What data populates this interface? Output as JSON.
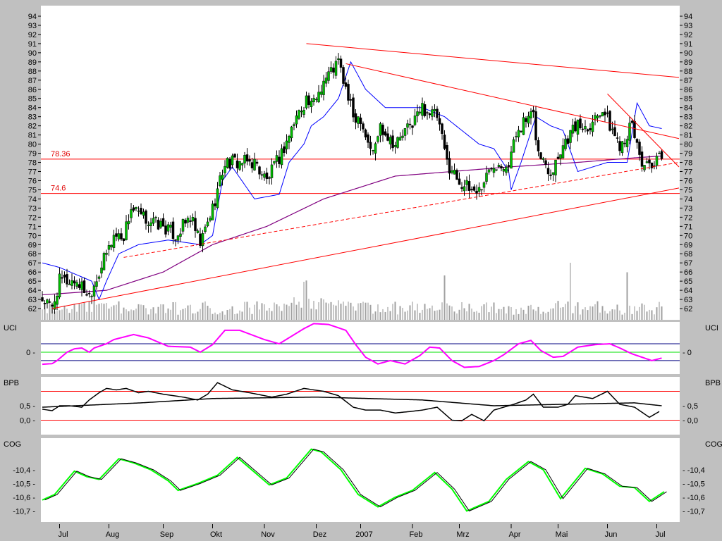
{
  "chart_data": [
    {
      "type": "candlestick",
      "panel": "price",
      "x_unit": "trading day index",
      "yticks": [
        62,
        63,
        64,
        65,
        66,
        67,
        68,
        69,
        70,
        71,
        72,
        73,
        74,
        75,
        76,
        77,
        78,
        79,
        80,
        81,
        82,
        83,
        84,
        85,
        86,
        87,
        88,
        89,
        90,
        91,
        92,
        93,
        94
      ],
      "ylim": [
        61.2,
        95
      ],
      "xlim": [
        0,
        260
      ],
      "x_ticks": [
        {
          "day": 7,
          "label": "Jul"
        },
        {
          "day": 27,
          "label": "Aug"
        },
        {
          "day": 49,
          "label": "Sep"
        },
        {
          "day": 69,
          "label": "Okt"
        },
        {
          "day": 90,
          "label": "Nov"
        },
        {
          "day": 111,
          "label": "Dez"
        },
        {
          "day": 129,
          "label": "2007"
        },
        {
          "day": 150,
          "label": "Feb"
        },
        {
          "day": 169,
          "label": "Mrz"
        },
        {
          "day": 190,
          "label": "Apr"
        },
        {
          "day": 209,
          "label": "Mai"
        },
        {
          "day": 229,
          "label": "Jun"
        },
        {
          "day": 249,
          "label": "Jul"
        }
      ],
      "close_keypoints": [
        [
          0,
          63
        ],
        [
          4,
          62
        ],
        [
          7,
          65
        ],
        [
          14,
          65
        ],
        [
          19,
          63.5
        ],
        [
          23,
          66
        ],
        [
          29,
          70
        ],
        [
          33,
          70
        ],
        [
          36,
          73
        ],
        [
          40,
          72
        ],
        [
          49,
          71
        ],
        [
          54,
          70
        ],
        [
          60,
          72
        ],
        [
          64,
          69
        ],
        [
          69,
          73
        ],
        [
          74,
          78
        ],
        [
          86,
          78
        ],
        [
          91,
          76
        ],
        [
          97,
          79
        ],
        [
          103,
          83
        ],
        [
          107,
          85
        ],
        [
          109,
          84
        ],
        [
          114,
          87
        ],
        [
          120,
          89
        ],
        [
          123,
          86
        ],
        [
          126,
          83
        ],
        [
          129,
          83
        ],
        [
          131,
          81
        ],
        [
          134,
          79
        ],
        [
          137,
          82
        ],
        [
          143,
          80
        ],
        [
          149,
          82
        ],
        [
          154,
          84
        ],
        [
          160,
          83
        ],
        [
          164,
          78
        ],
        [
          169,
          76
        ],
        [
          173,
          75
        ],
        [
          177,
          75
        ],
        [
          183,
          78
        ],
        [
          189,
          78
        ],
        [
          193,
          82
        ],
        [
          199,
          83
        ],
        [
          201,
          79
        ],
        [
          206,
          77
        ],
        [
          211,
          80
        ],
        [
          216,
          82
        ],
        [
          221,
          82
        ],
        [
          227,
          84
        ],
        [
          230,
          82
        ],
        [
          234,
          80
        ],
        [
          239,
          82
        ],
        [
          243,
          78
        ],
        [
          247,
          77
        ],
        [
          251,
          79
        ]
      ],
      "overlay_blue": [
        [
          0,
          67
        ],
        [
          7,
          66.5
        ],
        [
          20,
          65
        ],
        [
          23,
          63
        ],
        [
          26,
          65
        ],
        [
          31,
          68
        ],
        [
          39,
          69
        ],
        [
          51,
          69.5
        ],
        [
          64,
          69
        ],
        [
          69,
          70
        ],
        [
          73,
          76
        ],
        [
          77,
          77.5
        ],
        [
          86,
          74
        ],
        [
          96,
          74.5
        ],
        [
          100,
          78
        ],
        [
          106,
          80
        ],
        [
          109,
          82
        ],
        [
          114,
          83
        ],
        [
          120,
          85
        ],
        [
          125,
          89
        ],
        [
          131,
          86
        ],
        [
          139,
          84
        ],
        [
          154,
          84
        ],
        [
          163,
          83
        ],
        [
          177,
          80
        ],
        [
          183,
          79.5
        ],
        [
          189,
          77
        ],
        [
          190,
          75
        ],
        [
          194,
          78
        ],
        [
          200,
          83
        ],
        [
          206,
          82
        ],
        [
          211,
          81.5
        ],
        [
          217,
          77
        ],
        [
          229,
          78
        ],
        [
          237,
          78
        ],
        [
          241,
          84.5
        ],
        [
          246,
          82
        ],
        [
          251,
          81.7
        ]
      ],
      "overlay_purple_ma": [
        [
          0,
          63.5
        ],
        [
          26,
          64
        ],
        [
          49,
          66
        ],
        [
          69,
          69
        ],
        [
          91,
          71
        ],
        [
          114,
          74
        ],
        [
          143,
          76.5
        ],
        [
          166,
          77
        ],
        [
          189,
          77.5
        ],
        [
          217,
          78
        ],
        [
          240,
          78.5
        ],
        [
          251,
          78.7
        ]
      ],
      "volume_spikes": [
        [
          106,
          60
        ],
        [
          107,
          62
        ],
        [
          163,
          70
        ],
        [
          214,
          90
        ],
        [
          237,
          75
        ]
      ],
      "horizontal_lines": [
        {
          "value": 78.36,
          "label": "78.36"
        },
        {
          "value": 74.6,
          "label": "74.6"
        }
      ],
      "trendlines": [
        {
          "from": [
            107,
            91
          ],
          "to": [
            258,
            87.3
          ],
          "style": "solid"
        },
        {
          "from": [
            123,
            88.8
          ],
          "to": [
            258,
            80.6
          ],
          "style": "solid"
        },
        {
          "from": [
            229,
            85.5
          ],
          "to": [
            258,
            77.5
          ],
          "style": "solid"
        },
        {
          "from": [
            4,
            62
          ],
          "to": [
            258,
            75.2
          ],
          "style": "solid"
        },
        {
          "from": [
            33,
            67.6
          ],
          "to": [
            258,
            78
          ],
          "style": "dashed"
        }
      ],
      "colors": {
        "up": "#00c000",
        "down": "#000000",
        "blue": "#0000ff",
        "purple": "#800080",
        "red": "#ff0000",
        "volume": "#a0a0a0"
      }
    },
    {
      "type": "line",
      "panel": "UCI",
      "title": "UCI",
      "yticks": [
        {
          "value": 0,
          "label": "0"
        }
      ],
      "ylim": [
        -2.2,
        3.6
      ],
      "bands": [
        1,
        -1
      ],
      "series": [
        {
          "name": "UCI",
          "color": "#ff00ff",
          "points": [
            [
              0,
              -1.44
            ],
            [
              4,
              -1.36
            ],
            [
              6,
              -1
            ],
            [
              10,
              0
            ],
            [
              13,
              0.4
            ],
            [
              16,
              0.5
            ],
            [
              19,
              0
            ],
            [
              21,
              0.5
            ],
            [
              26,
              1.0
            ],
            [
              29,
              1.5
            ],
            [
              37,
              2.1
            ],
            [
              43,
              1.7
            ],
            [
              51,
              0.7
            ],
            [
              60,
              0.6
            ],
            [
              64,
              0
            ],
            [
              69,
              0.9
            ],
            [
              74,
              2.6
            ],
            [
              80,
              2.6
            ],
            [
              90,
              1.5
            ],
            [
              96,
              1.0
            ],
            [
              106,
              2.8
            ],
            [
              110,
              3.4
            ],
            [
              116,
              3.3
            ],
            [
              123,
              2.6
            ],
            [
              127,
              0.9
            ],
            [
              131,
              -0.6
            ],
            [
              136,
              -1.4
            ],
            [
              141,
              -1.0
            ],
            [
              147,
              -1.4
            ],
            [
              153,
              -0.4
            ],
            [
              157,
              0.6
            ],
            [
              161,
              0.5
            ],
            [
              166,
              -1.0
            ],
            [
              171,
              -1.8
            ],
            [
              177,
              -1.7
            ],
            [
              183,
              -1.0
            ],
            [
              187,
              -0.3
            ],
            [
              193,
              1.0
            ],
            [
              198,
              1.4
            ],
            [
              202,
              0.2
            ],
            [
              207,
              -0.6
            ],
            [
              211,
              -0.5
            ],
            [
              217,
              0.6
            ],
            [
              224,
              0.9
            ],
            [
              230,
              1.0
            ],
            [
              234,
              0.5
            ],
            [
              239,
              -0.2
            ],
            [
              243,
              -0.6
            ],
            [
              247,
              -1.0
            ],
            [
              251,
              -0.7
            ]
          ]
        }
      ]
    },
    {
      "type": "line",
      "panel": "BPB",
      "title": "BPB",
      "yticks": [
        {
          "value": 0.5,
          "label": "0,5"
        },
        {
          "value": 0,
          "label": "0,0"
        }
      ],
      "ylim": [
        -0.5,
        1.4
      ],
      "bands": [
        1.0,
        0.0
      ],
      "series": [
        {
          "name": "BPB",
          "color": "#000000",
          "points": [
            [
              0,
              0.38
            ],
            [
              4,
              0.33
            ],
            [
              7,
              0.5
            ],
            [
              11,
              0.5
            ],
            [
              16,
              0.45
            ],
            [
              19,
              0.7
            ],
            [
              23,
              0.95
            ],
            [
              26,
              1.1
            ],
            [
              30,
              1.05
            ],
            [
              34,
              1.1
            ],
            [
              39,
              0.95
            ],
            [
              43,
              1.0
            ],
            [
              49,
              0.9
            ],
            [
              57,
              0.8
            ],
            [
              63,
              0.7
            ],
            [
              67,
              0.9
            ],
            [
              71,
              1.3
            ],
            [
              77,
              1.05
            ],
            [
              84,
              0.95
            ],
            [
              93,
              0.8
            ],
            [
              99,
              0.9
            ],
            [
              106,
              1.1
            ],
            [
              114,
              1.0
            ],
            [
              120,
              0.85
            ],
            [
              126,
              0.45
            ],
            [
              131,
              0.35
            ],
            [
              137,
              0.35
            ],
            [
              143,
              0.25
            ],
            [
              149,
              0.3
            ],
            [
              154,
              0.35
            ],
            [
              160,
              0.45
            ],
            [
              166,
              0.0
            ],
            [
              170,
              -0.02
            ],
            [
              174,
              0.2
            ],
            [
              179,
              -0.02
            ],
            [
              183,
              0.35
            ],
            [
              187,
              0.45
            ],
            [
              191,
              0.55
            ],
            [
              196,
              0.7
            ],
            [
              199,
              0.9
            ],
            [
              203,
              0.45
            ],
            [
              209,
              0.45
            ],
            [
              213,
              0.55
            ],
            [
              216,
              0.85
            ],
            [
              223,
              0.75
            ],
            [
              229,
              1.0
            ],
            [
              234,
              0.55
            ],
            [
              240,
              0.45
            ],
            [
              246,
              0.1
            ],
            [
              250,
              0.3
            ]
          ]
        },
        {
          "name": "BPB average",
          "color": "#000000",
          "points": [
            [
              0,
              0.45
            ],
            [
              40,
              0.6
            ],
            [
              69,
              0.75
            ],
            [
              111,
              0.8
            ],
            [
              154,
              0.7
            ],
            [
              183,
              0.5
            ],
            [
              211,
              0.55
            ],
            [
              240,
              0.6
            ],
            [
              251,
              0.5
            ]
          ]
        }
      ]
    },
    {
      "type": "line",
      "panel": "COG",
      "title": "COG",
      "yticks": [
        {
          "value": -10.4,
          "label": "-10,4"
        },
        {
          "value": -10.5,
          "label": "-10,5"
        },
        {
          "value": -10.6,
          "label": "-10,6"
        },
        {
          "value": -10.7,
          "label": "-10,7"
        }
      ],
      "ylim": [
        -10.78,
        -10.2
      ],
      "series": [
        {
          "name": "COG",
          "color": "#00ff00",
          "points": [
            [
              0,
              -10.62
            ],
            [
              5,
              -10.58
            ],
            [
              13,
              -10.41
            ],
            [
              18,
              -10.45
            ],
            [
              23,
              -10.47
            ],
            [
              31,
              -10.32
            ],
            [
              37,
              -10.35
            ],
            [
              44,
              -10.4
            ],
            [
              51,
              -10.48
            ],
            [
              55,
              -10.55
            ],
            [
              63,
              -10.5
            ],
            [
              71,
              -10.44
            ],
            [
              79,
              -10.31
            ],
            [
              92,
              -10.51
            ],
            [
              99,
              -10.46
            ],
            [
              109,
              -10.25
            ],
            [
              113,
              -10.27
            ],
            [
              121,
              -10.4
            ],
            [
              128,
              -10.58
            ],
            [
              136,
              -10.67
            ],
            [
              143,
              -10.6
            ],
            [
              150,
              -10.55
            ],
            [
              159,
              -10.42
            ],
            [
              166,
              -10.54
            ],
            [
              172,
              -10.7
            ],
            [
              181,
              -10.63
            ],
            [
              188,
              -10.47
            ],
            [
              197,
              -10.34
            ],
            [
              203,
              -10.4
            ],
            [
              210,
              -10.61
            ],
            [
              220,
              -10.39
            ],
            [
              227,
              -10.43
            ],
            [
              234,
              -10.52
            ],
            [
              240,
              -10.53
            ],
            [
              246,
              -10.63
            ],
            [
              252,
              -10.56
            ]
          ]
        },
        {
          "name": "COG trigger",
          "color": "#000000",
          "lag_days": 1
        }
      ]
    }
  ]
}
